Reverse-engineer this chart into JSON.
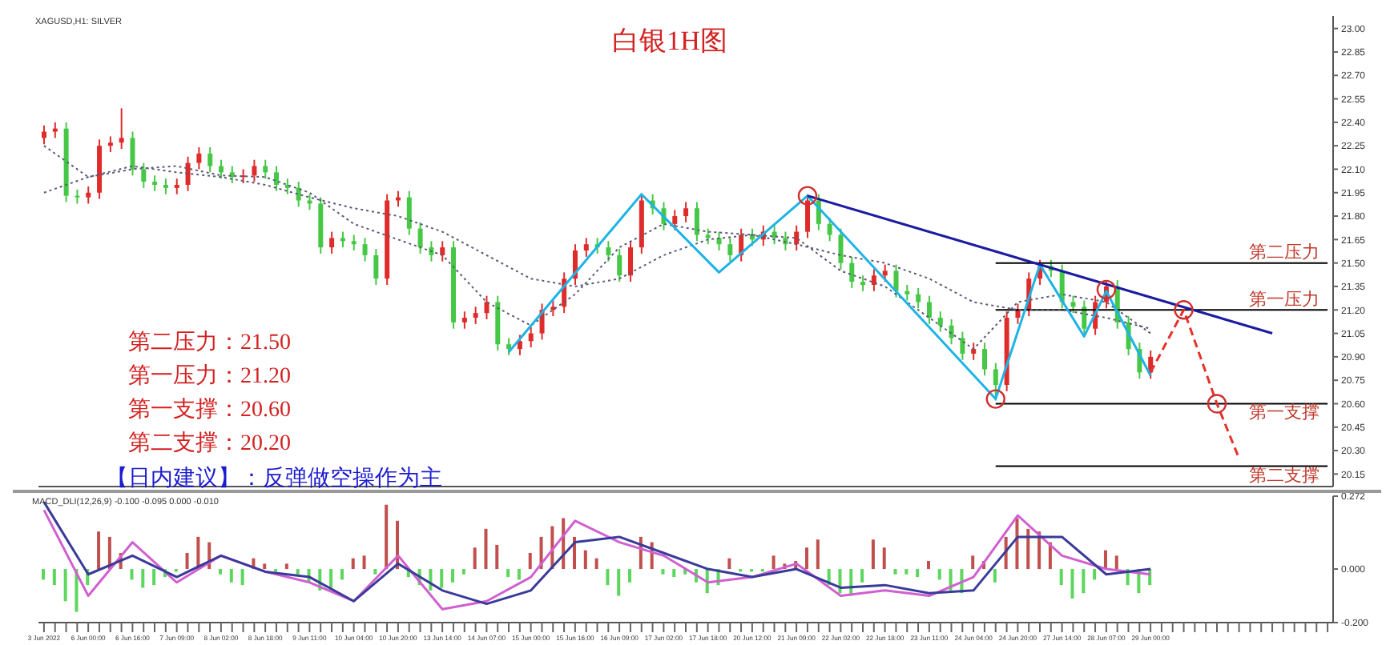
{
  "chart_data": [
    {
      "type": "candlestick",
      "title": "白银1H图",
      "annotations": [
        "XAGUSD,H1: SILVER",
        "第二压力：21.50",
        "第一压力：21.20",
        "第一支撑：20.60",
        "第二支撑：20.20",
        "【日内建议】：反弹做空操作为主"
      ],
      "categories": [
        null,
        null,
        null,
        null,
        null,
        null,
        null,
        null,
        null,
        null,
        null,
        null,
        null,
        null,
        null,
        null,
        null,
        null,
        null,
        null,
        null,
        null,
        null,
        null,
        null,
        null,
        null,
        null,
        null,
        null,
        null,
        null,
        null,
        null,
        null,
        null,
        null,
        null,
        null,
        null,
        null,
        null,
        null,
        null,
        null,
        null,
        null,
        null,
        null,
        null,
        null,
        null,
        null,
        null,
        null,
        null,
        null,
        null,
        null,
        null,
        null,
        null,
        null,
        null,
        null,
        null,
        null,
        null,
        null,
        null,
        null,
        null,
        null,
        null,
        null,
        null,
        null,
        null,
        null,
        null,
        null,
        null,
        null,
        null,
        null,
        null,
        null,
        null,
        null,
        null,
        null,
        null,
        null,
        null,
        null,
        null,
        null,
        null,
        null,
        null,
        null,
        null,
        null,
        null,
        null,
        null,
        null,
        null,
        null,
        null,
        null,
        null,
        null,
        null,
        null,
        null,
        null
      ],
      "ohlc": [
        [
          22.3,
          22.38,
          22.26,
          22.34
        ],
        [
          22.34,
          22.4,
          22.3,
          22.36
        ],
        [
          22.36,
          22.4,
          21.89,
          21.93
        ],
        [
          21.93,
          21.97,
          21.88,
          21.92
        ],
        [
          21.92,
          21.99,
          21.88,
          21.95
        ],
        [
          21.95,
          22.29,
          21.91,
          22.25
        ],
        [
          22.25,
          22.31,
          22.21,
          22.27
        ],
        [
          22.27,
          22.49,
          22.23,
          22.3
        ],
        [
          22.3,
          22.34,
          22.06,
          22.1
        ],
        [
          22.1,
          22.14,
          21.98,
          22.02
        ],
        [
          22.02,
          22.06,
          21.96,
          22.0
        ],
        [
          22.0,
          22.04,
          21.94,
          21.98
        ],
        [
          21.98,
          22.04,
          21.94,
          22.0
        ],
        [
          22.0,
          22.18,
          21.96,
          22.14
        ],
        [
          22.14,
          22.24,
          22.1,
          22.2
        ],
        [
          22.2,
          22.24,
          22.08,
          22.12
        ],
        [
          22.12,
          22.16,
          22.04,
          22.08
        ],
        [
          22.08,
          22.12,
          22.01,
          22.05
        ],
        [
          22.05,
          22.1,
          22.01,
          22.06
        ],
        [
          22.06,
          22.16,
          22.02,
          22.12
        ],
        [
          22.12,
          22.16,
          22.04,
          22.08
        ],
        [
          22.08,
          22.12,
          21.96,
          22.0
        ],
        [
          22.0,
          22.04,
          21.94,
          21.98
        ],
        [
          21.98,
          22.02,
          21.86,
          21.9
        ],
        [
          21.9,
          21.94,
          21.84,
          21.88
        ],
        [
          21.88,
          21.92,
          21.56,
          21.6
        ],
        [
          21.6,
          21.7,
          21.56,
          21.66
        ],
        [
          21.66,
          21.7,
          21.6,
          21.64
        ],
        [
          21.64,
          21.68,
          21.58,
          21.62
        ],
        [
          21.62,
          21.66,
          21.51,
          21.55
        ],
        [
          21.55,
          21.59,
          21.36,
          21.4
        ],
        [
          21.4,
          21.94,
          21.36,
          21.9
        ],
        [
          21.9,
          21.96,
          21.86,
          21.92
        ],
        [
          21.92,
          21.96,
          21.68,
          21.72
        ],
        [
          21.72,
          21.76,
          21.56,
          21.6
        ],
        [
          21.6,
          21.64,
          21.51,
          21.55
        ],
        [
          21.55,
          21.64,
          21.51,
          21.6
        ],
        [
          21.6,
          21.64,
          21.08,
          21.12
        ],
        [
          21.12,
          21.19,
          21.08,
          21.15
        ],
        [
          21.15,
          21.22,
          21.11,
          21.18
        ],
        [
          21.18,
          21.29,
          21.14,
          21.25
        ],
        [
          21.25,
          21.29,
          20.94,
          20.98
        ],
        [
          20.98,
          21.02,
          20.91,
          20.95
        ],
        [
          20.95,
          21.04,
          20.91,
          21.0
        ],
        [
          21.0,
          21.09,
          20.96,
          21.05
        ],
        [
          21.05,
          21.24,
          21.01,
          21.2
        ],
        [
          21.2,
          21.26,
          21.16,
          21.22
        ],
        [
          21.22,
          21.44,
          21.18,
          21.4
        ],
        [
          21.4,
          21.62,
          21.36,
          21.58
        ],
        [
          21.58,
          21.66,
          21.54,
          21.62
        ],
        [
          21.62,
          21.66,
          21.56,
          21.6
        ],
        [
          21.6,
          21.64,
          21.51,
          21.55
        ],
        [
          21.55,
          21.59,
          21.38,
          21.42
        ],
        [
          21.42,
          21.64,
          21.38,
          21.6
        ],
        [
          21.6,
          21.94,
          21.56,
          21.9
        ],
        [
          21.9,
          21.94,
          21.81,
          21.85
        ],
        [
          21.85,
          21.89,
          21.71,
          21.75
        ],
        [
          21.75,
          21.84,
          21.71,
          21.8
        ],
        [
          21.8,
          21.89,
          21.76,
          21.85
        ],
        [
          21.85,
          21.89,
          21.64,
          21.68
        ],
        [
          21.68,
          21.72,
          21.62,
          21.66
        ],
        [
          21.66,
          21.7,
          21.58,
          21.62
        ],
        [
          21.62,
          21.66,
          21.51,
          21.55
        ],
        [
          21.55,
          21.72,
          21.51,
          21.68
        ],
        [
          21.68,
          21.72,
          21.61,
          21.65
        ],
        [
          21.65,
          21.74,
          21.61,
          21.7
        ],
        [
          21.7,
          21.74,
          21.62,
          21.66
        ],
        [
          21.66,
          21.7,
          21.58,
          21.62
        ],
        [
          21.62,
          21.74,
          21.58,
          21.7
        ],
        [
          21.7,
          21.94,
          21.66,
          21.9
        ],
        [
          21.9,
          21.94,
          21.71,
          21.75
        ],
        [
          21.75,
          21.79,
          21.64,
          21.68
        ],
        [
          21.68,
          21.72,
          21.46,
          21.5
        ],
        [
          21.5,
          21.54,
          21.34,
          21.38
        ],
        [
          21.38,
          21.42,
          21.32,
          21.36
        ],
        [
          21.36,
          21.46,
          21.32,
          21.42
        ],
        [
          21.42,
          21.49,
          21.38,
          21.45
        ],
        [
          21.45,
          21.49,
          21.28,
          21.32
        ],
        [
          21.32,
          21.36,
          21.26,
          21.3
        ],
        [
          21.3,
          21.34,
          21.21,
          21.25
        ],
        [
          21.25,
          21.29,
          21.11,
          21.15
        ],
        [
          21.15,
          21.19,
          21.06,
          21.1
        ],
        [
          21.1,
          21.14,
          20.98,
          21.02
        ],
        [
          21.02,
          21.06,
          20.88,
          20.92
        ],
        [
          20.92,
          20.99,
          20.88,
          20.95
        ],
        [
          20.95,
          20.99,
          20.78,
          20.82
        ],
        [
          20.82,
          20.86,
          20.62,
          20.72
        ],
        [
          20.72,
          21.19,
          20.68,
          21.15
        ],
        [
          21.15,
          21.24,
          21.11,
          21.2
        ],
        [
          21.2,
          21.44,
          21.16,
          21.4
        ],
        [
          21.4,
          21.52,
          21.36,
          21.48
        ],
        [
          21.48,
          21.52,
          21.41,
          21.45
        ],
        [
          21.45,
          21.49,
          21.21,
          21.25
        ],
        [
          21.25,
          21.29,
          21.18,
          21.22
        ],
        [
          21.22,
          21.26,
          21.04,
          21.08
        ],
        [
          21.08,
          21.29,
          21.04,
          21.25
        ],
        [
          21.25,
          21.39,
          21.21,
          21.35
        ],
        [
          21.35,
          21.39,
          21.08,
          21.12
        ],
        [
          21.12,
          21.16,
          20.91,
          20.95
        ],
        [
          20.95,
          20.99,
          20.76,
          20.8
        ],
        [
          20.8,
          20.94,
          20.76,
          20.9
        ],
        null,
        null,
        null,
        null,
        null,
        null,
        null,
        null,
        null,
        null,
        null,
        null,
        null,
        null,
        null,
        null
      ],
      "colors": [
        "#e02b2b",
        "#e02b2b",
        "#46c846",
        "#46c846",
        "#e02b2b",
        "#e02b2b",
        "#e02b2b",
        "#e02b2b",
        "#46c846",
        "#46c846",
        "#46c846",
        "#46c846",
        "#e02b2b",
        "#e02b2b",
        "#e02b2b",
        "#46c846",
        "#46c846",
        "#46c846",
        "#e02b2b",
        "#e02b2b",
        "#46c846",
        "#46c846",
        "#46c846",
        "#46c846",
        "#46c846",
        "#46c846",
        "#e02b2b",
        "#46c846",
        "#46c846",
        "#46c846",
        "#46c846",
        "#e02b2b",
        "#e02b2b",
        "#46c846",
        "#46c846",
        "#46c846",
        "#e02b2b",
        "#46c846",
        "#e02b2b",
        "#e02b2b",
        "#e02b2b",
        "#46c846",
        "#46c846",
        "#e02b2b",
        "#e02b2b",
        "#e02b2b",
        "#e02b2b",
        "#e02b2b",
        "#e02b2b",
        "#e02b2b",
        "#46c846",
        "#46c846",
        "#46c846",
        "#e02b2b",
        "#e02b2b",
        "#46c846",
        "#46c846",
        "#e02b2b",
        "#e02b2b",
        "#46c846",
        "#46c846",
        "#46c846",
        "#46c846",
        "#e02b2b",
        "#46c846",
        "#e02b2b",
        "#46c846",
        "#46c846",
        "#e02b2b",
        "#e02b2b",
        "#46c846",
        "#46c846",
        "#46c846",
        "#46c846",
        "#46c846",
        "#e02b2b",
        "#e02b2b",
        "#46c846",
        "#46c846",
        "#46c846",
        "#46c846",
        "#46c846",
        "#46c846",
        "#46c846",
        "#e02b2b",
        "#46c846",
        "#46c846",
        "#e02b2b",
        "#e02b2b",
        "#e02b2b",
        "#e02b2b",
        "#46c846",
        "#46c846",
        "#46c846",
        "#46c846",
        "#e02b2b",
        "#e02b2b",
        "#46c846",
        "#46c846",
        "#46c846",
        "#e02b2b",
        null,
        null,
        null,
        null,
        null,
        null,
        null,
        null,
        null,
        null,
        null,
        null,
        null,
        null,
        null,
        null
      ],
      "series": [
        {
          "type": "line",
          "color": "#5a5a78",
          "line_style": "dotted",
          "values": [
            22.25,
            null,
            null,
            null,
            22.05,
            null,
            null,
            null,
            22.1,
            null,
            null,
            null,
            22.12,
            null,
            null,
            null,
            22.06,
            null,
            null,
            null,
            22.05,
            null,
            null,
            null,
            21.95,
            null,
            null,
            null,
            21.75,
            null,
            null,
            null,
            21.65,
            null,
            null,
            null,
            21.55,
            null,
            null,
            null,
            21.25,
            null,
            null,
            null,
            21.1,
            null,
            null,
            null,
            21.3,
            null,
            null,
            null,
            21.6,
            null,
            null,
            null,
            21.75,
            null,
            null,
            null,
            21.7,
            null,
            null,
            null,
            21.68,
            null,
            null,
            null,
            21.66,
            null,
            null,
            null,
            21.45,
            null,
            null,
            null,
            21.35,
            null,
            null,
            null,
            21.15,
            null,
            null,
            null,
            20.95,
            null,
            null,
            null,
            21.25,
            null,
            null,
            null,
            21.3,
            null,
            null,
            null,
            21.25,
            null,
            null,
            null,
            21.05,
            null,
            null,
            null,
            null,
            null,
            null,
            null,
            null,
            null,
            null,
            null,
            null,
            null,
            null,
            null,
            null
          ]
        },
        {
          "type": "line",
          "color": "#5a5a78",
          "line_style": "dotted",
          "values": [
            21.95,
            null,
            null,
            null,
            22.05,
            null,
            null,
            null,
            22.12,
            null,
            null,
            null,
            22.08,
            null,
            null,
            null,
            22.05,
            null,
            null,
            null,
            22.0,
            null,
            null,
            null,
            21.92,
            null,
            null,
            null,
            21.85,
            null,
            null,
            null,
            21.8,
            null,
            null,
            null,
            21.7,
            null,
            null,
            null,
            21.55,
            null,
            null,
            null,
            21.4,
            null,
            null,
            null,
            21.35,
            null,
            null,
            null,
            21.4,
            null,
            null,
            null,
            21.55,
            null,
            null,
            null,
            21.65,
            null,
            null,
            null,
            21.68,
            null,
            null,
            null,
            21.62,
            null,
            null,
            null,
            21.55,
            null,
            null,
            null,
            21.5,
            null,
            null,
            null,
            21.4,
            null,
            null,
            null,
            21.25,
            null,
            null,
            null,
            21.2,
            null,
            null,
            null,
            21.2,
            null,
            null,
            null,
            21.15,
            null,
            null,
            null,
            21.08,
            null,
            null,
            null,
            null,
            null,
            null,
            null,
            null,
            null,
            null,
            null,
            null,
            null,
            null,
            null,
            null
          ]
        },
        {
          "type": "line",
          "color": "#1eb4e6",
          "line_style": "solid",
          "values": [
            null,
            null,
            null,
            null,
            null,
            null,
            null,
            null,
            null,
            null,
            null,
            null,
            null,
            null,
            null,
            null,
            null,
            null,
            null,
            null,
            null,
            null,
            null,
            null,
            null,
            null,
            null,
            null,
            null,
            null,
            null,
            null,
            null,
            null,
            null,
            null,
            null,
            null,
            null,
            null,
            null,
            null,
            20.93,
            null,
            null,
            null,
            null,
            null,
            null,
            null,
            null,
            null,
            null,
            null,
            21.94,
            null,
            null,
            null,
            null,
            null,
            null,
            21.44,
            null,
            null,
            null,
            null,
            null,
            null,
            null,
            21.93,
            null,
            null,
            null,
            null,
            null,
            null,
            null,
            null,
            null,
            null,
            null,
            null,
            null,
            null,
            null,
            null,
            20.63,
            null,
            null,
            null,
            21.49,
            null,
            null,
            null,
            21.03,
            null,
            21.32,
            null,
            null,
            null,
            20.78,
            null,
            null,
            null,
            null,
            null,
            null,
            null,
            null,
            null,
            null,
            null,
            null,
            null,
            null,
            null,
            null
          ]
        },
        {
          "type": "line",
          "color": "#1c1ca0",
          "line_style": "solid",
          "values": [
            null,
            null,
            null,
            null,
            null,
            null,
            null,
            null,
            null,
            null,
            null,
            null,
            null,
            null,
            null,
            null,
            null,
            null,
            null,
            null,
            null,
            null,
            null,
            null,
            null,
            null,
            null,
            null,
            null,
            null,
            null,
            null,
            null,
            null,
            null,
            null,
            null,
            null,
            null,
            null,
            null,
            null,
            null,
            null,
            null,
            null,
            null,
            null,
            null,
            null,
            null,
            null,
            null,
            null,
            null,
            null,
            null,
            null,
            null,
            null,
            null,
            null,
            null,
            null,
            null,
            null,
            null,
            null,
            null,
            21.93,
            null,
            null,
            null,
            null,
            null,
            null,
            null,
            null,
            null,
            null,
            null,
            null,
            null,
            null,
            null,
            null,
            null,
            null,
            null,
            null,
            null,
            null,
            null,
            null,
            null,
            null,
            null,
            null,
            null,
            null,
            null,
            null,
            null,
            null,
            null,
            null,
            null,
            null,
            null,
            null,
            null,
            21.05,
            null,
            null,
            null,
            null,
            null
          ]
        },
        {
          "type": "line",
          "color": "#e8302a",
          "line_style": "dashed",
          "values": [
            null,
            null,
            null,
            null,
            null,
            null,
            null,
            null,
            null,
            null,
            null,
            null,
            null,
            null,
            null,
            null,
            null,
            null,
            null,
            null,
            null,
            null,
            null,
            null,
            null,
            null,
            null,
            null,
            null,
            null,
            null,
            null,
            null,
            null,
            null,
            null,
            null,
            null,
            null,
            null,
            null,
            null,
            null,
            null,
            null,
            null,
            null,
            null,
            null,
            null,
            null,
            null,
            null,
            null,
            null,
            null,
            null,
            null,
            null,
            null,
            null,
            null,
            null,
            null,
            null,
            null,
            null,
            null,
            null,
            null,
            null,
            null,
            null,
            null,
            null,
            null,
            null,
            null,
            null,
            null,
            null,
            null,
            null,
            null,
            null,
            null,
            null,
            null,
            null,
            null,
            null,
            null,
            null,
            null,
            null,
            null,
            null,
            null,
            null,
            null,
            20.8,
            null,
            null,
            21.2,
            null,
            null,
            20.6,
            null,
            20.25,
            null,
            null,
            null,
            null,
            null,
            null,
            null,
            null
          ]
        },
        {
          "type": "scatter",
          "color": "#d03030",
          "marker": "circle",
          "values": [
            null,
            null,
            null,
            null,
            null,
            null,
            null,
            null,
            null,
            null,
            null,
            null,
            null,
            null,
            null,
            null,
            null,
            null,
            null,
            null,
            null,
            null,
            null,
            null,
            null,
            null,
            null,
            null,
            null,
            null,
            null,
            null,
            null,
            null,
            null,
            null,
            null,
            null,
            null,
            null,
            null,
            null,
            null,
            null,
            null,
            null,
            null,
            null,
            null,
            null,
            null,
            null,
            null,
            null,
            null,
            null,
            null,
            null,
            null,
            null,
            null,
            null,
            null,
            null,
            null,
            null,
            null,
            null,
            null,
            21.93,
            null,
            null,
            null,
            null,
            null,
            null,
            null,
            null,
            null,
            null,
            null,
            null,
            null,
            null,
            null,
            null,
            20.63,
            null,
            null,
            null,
            null,
            null,
            null,
            null,
            null,
            null,
            21.33,
            null,
            null,
            null,
            null,
            null,
            null,
            21.2,
            null,
            null,
            20.6,
            null,
            null,
            null,
            null,
            null,
            null,
            null,
            null,
            null,
            null
          ]
        }
      ],
      "ref_lines": [
        {
          "axis": "y",
          "value": 21.5,
          "label": "第二压力",
          "color": "#000000"
        },
        {
          "axis": "y",
          "value": 21.2,
          "label": "第一压力",
          "color": "#000000"
        },
        {
          "axis": "y",
          "value": 20.6,
          "label": "第一支撑",
          "color": "#000000"
        },
        {
          "axis": "y",
          "value": 20.2,
          "label": "第二支撑",
          "color": "#000000"
        }
      ],
      "ylim": [
        20.07,
        23.08
      ],
      "yticks": [
        20.15,
        {
          "value": 20.3,
          "label": "20.30"
        },
        20.45,
        {
          "value": 20.6,
          "label": "20.60"
        },
        20.75,
        {
          "value": 20.9,
          "label": "20.90"
        },
        21.05,
        {
          "value": 21.2,
          "label": "21.20"
        },
        21.35,
        {
          "value": 21.5,
          "label": "21.50"
        },
        21.65,
        {
          "value": 21.8,
          "label": "21.80"
        },
        21.95,
        {
          "value": 22.1,
          "label": "22.10"
        },
        22.25,
        {
          "value": 22.4,
          "label": "22.40"
        },
        22.55,
        {
          "value": 22.7,
          "label": "22.70"
        },
        22.85,
        {
          "value": 23,
          "label": "23.00"
        }
      ],
      "tick_labels": "y",
      "grid": false,
      "legend": false
    },
    {
      "type": "bar",
      "title": "MACD_DLI(12,26,9) -0.100 -0.095 0.000 -0.010",
      "categories": [
        "3 Jun 2022",
        null,
        null,
        null,
        "6 Jun 00:00",
        null,
        null,
        null,
        "6 Jun 16:00",
        null,
        null,
        null,
        "7 Jun 09:00",
        null,
        null,
        null,
        "8 Jun 02:00",
        null,
        null,
        null,
        "8 Jun 18:00",
        null,
        null,
        null,
        "9 Jun 11:00",
        null,
        null,
        null,
        "10 Jun 04:00",
        null,
        null,
        null,
        "10 Jun 20:00",
        null,
        null,
        null,
        "13 Jun 14:00",
        null,
        null,
        null,
        "14 Jun 07:00",
        null,
        null,
        null,
        "15 Jun 00:00",
        null,
        null,
        null,
        "15 Jun 16:00",
        null,
        null,
        null,
        "16 Jun 09:00",
        null,
        null,
        null,
        "17 Jun 02:00",
        null,
        null,
        null,
        "17 Jun 18:00",
        null,
        null,
        null,
        "20 Jun 12:00",
        null,
        null,
        null,
        "21 Jun 09:00",
        null,
        null,
        null,
        "22 Jun 02:00",
        null,
        null,
        null,
        "22 Jun 18:00",
        null,
        null,
        null,
        "23 Jun 11:00",
        null,
        null,
        null,
        "24 Jun 04:00",
        null,
        null,
        null,
        "24 Jun 20:00",
        null,
        null,
        null,
        "27 Jun 14:00",
        null,
        null,
        null,
        "28 Jun 07:00",
        null,
        null,
        null,
        "29 Jun 00:00",
        null,
        null,
        null,
        null,
        null,
        null,
        null,
        null,
        null,
        null,
        null,
        null,
        null,
        null,
        null,
        null
      ],
      "values": [
        -0.04,
        -0.06,
        -0.12,
        -0.16,
        -0.06,
        0.14,
        0.12,
        0.06,
        -0.04,
        -0.07,
        -0.06,
        -0.03,
        -0.01,
        0.06,
        0.12,
        0.1,
        -0.02,
        -0.05,
        -0.06,
        0.04,
        0.02,
        -0.01,
        0.02,
        -0.02,
        -0.05,
        -0.08,
        -0.07,
        -0.04,
        0.04,
        0.05,
        -0.02,
        0.24,
        0.18,
        -0.03,
        -0.06,
        -0.08,
        -0.07,
        -0.05,
        -0.02,
        0.08,
        0.15,
        0.09,
        -0.03,
        -0.04,
        0.06,
        0.12,
        0.16,
        0.19,
        0.12,
        0.07,
        0.04,
        -0.06,
        -0.1,
        -0.05,
        0.12,
        0.1,
        -0.02,
        -0.03,
        -0.02,
        -0.05,
        -0.09,
        -0.06,
        0.04,
        -0.01,
        -0.01,
        -0.01,
        0.05,
        0.02,
        0.03,
        0.08,
        0.11,
        -0.06,
        -0.09,
        -0.1,
        -0.05,
        0.11,
        0.08,
        -0.02,
        -0.02,
        -0.03,
        0.03,
        -0.04,
        -0.08,
        -0.09,
        0.05,
        0.03,
        -0.05,
        0.12,
        0.19,
        0.15,
        0.14,
        0.1,
        -0.06,
        -0.11,
        -0.09,
        -0.04,
        0.07,
        0.05,
        -0.06,
        -0.09,
        -0.06,
        null,
        null,
        null,
        null,
        null,
        null,
        null,
        null,
        null,
        null,
        null,
        null,
        null,
        null,
        null,
        null
      ],
      "colors": [
        "#5cd65c",
        "#5cd65c",
        "#5cd65c",
        "#5cd65c",
        "#5cd65c",
        "#c0504d",
        "#c0504d",
        "#c0504d",
        "#5cd65c",
        "#5cd65c",
        "#5cd65c",
        "#5cd65c",
        "#5cd65c",
        "#c0504d",
        "#c0504d",
        "#c0504d",
        "#5cd65c",
        "#5cd65c",
        "#5cd65c",
        "#c0504d",
        "#c0504d",
        "#5cd65c",
        "#c0504d",
        "#5cd65c",
        "#5cd65c",
        "#5cd65c",
        "#5cd65c",
        "#5cd65c",
        "#c0504d",
        "#c0504d",
        "#5cd65c",
        "#c0504d",
        "#c0504d",
        "#5cd65c",
        "#5cd65c",
        "#5cd65c",
        "#5cd65c",
        "#5cd65c",
        "#5cd65c",
        "#c0504d",
        "#c0504d",
        "#c0504d",
        "#5cd65c",
        "#5cd65c",
        "#c0504d",
        "#c0504d",
        "#c0504d",
        "#c0504d",
        "#c0504d",
        "#c0504d",
        "#c0504d",
        "#5cd65c",
        "#5cd65c",
        "#5cd65c",
        "#c0504d",
        "#c0504d",
        "#5cd65c",
        "#5cd65c",
        "#5cd65c",
        "#5cd65c",
        "#5cd65c",
        "#5cd65c",
        "#c0504d",
        "#5cd65c",
        "#5cd65c",
        "#5cd65c",
        "#c0504d",
        "#c0504d",
        "#c0504d",
        "#c0504d",
        "#c0504d",
        "#5cd65c",
        "#5cd65c",
        "#5cd65c",
        "#5cd65c",
        "#c0504d",
        "#c0504d",
        "#5cd65c",
        "#5cd65c",
        "#5cd65c",
        "#c0504d",
        "#5cd65c",
        "#5cd65c",
        "#5cd65c",
        "#c0504d",
        "#c0504d",
        "#5cd65c",
        "#c0504d",
        "#c0504d",
        "#c0504d",
        "#c0504d",
        "#c0504d",
        "#5cd65c",
        "#5cd65c",
        "#5cd65c",
        "#5cd65c",
        "#c0504d",
        "#c0504d",
        "#5cd65c",
        "#5cd65c",
        "#5cd65c",
        null,
        null,
        null,
        null,
        null,
        null,
        null,
        null,
        null,
        null,
        null,
        null,
        null,
        null,
        null,
        null
      ],
      "series": [
        {
          "type": "line",
          "color": "#d060d0",
          "line_style": "solid",
          "values": [
            0.22,
            null,
            null,
            null,
            -0.1,
            null,
            null,
            null,
            0.1,
            null,
            null,
            null,
            -0.05,
            null,
            null,
            null,
            0.05,
            null,
            null,
            null,
            -0.01,
            null,
            null,
            null,
            -0.05,
            null,
            null,
            null,
            -0.12,
            null,
            null,
            null,
            0.05,
            null,
            null,
            null,
            -0.15,
            null,
            null,
            null,
            -0.12,
            null,
            null,
            null,
            -0.03,
            null,
            null,
            null,
            0.18,
            null,
            null,
            null,
            0.1,
            null,
            null,
            null,
            0.05,
            null,
            null,
            null,
            -0.05,
            null,
            null,
            null,
            -0.03,
            null,
            null,
            null,
            0.02,
            null,
            null,
            null,
            -0.1,
            null,
            null,
            null,
            -0.08,
            null,
            null,
            null,
            -0.1,
            null,
            null,
            null,
            -0.03,
            null,
            null,
            null,
            0.2,
            null,
            null,
            null,
            0.05,
            null,
            null,
            null,
            0.0,
            null,
            null,
            null,
            -0.02,
            null,
            null,
            null,
            null,
            null,
            null,
            null,
            null,
            null,
            null,
            null,
            null,
            null,
            null,
            null,
            null
          ]
        },
        {
          "type": "line",
          "color": "#3a3a9a",
          "line_style": "solid",
          "values": [
            0.25,
            null,
            null,
            null,
            -0.02,
            null,
            null,
            null,
            0.05,
            null,
            null,
            null,
            -0.03,
            null,
            null,
            null,
            0.05,
            null,
            null,
            null,
            -0.01,
            null,
            null,
            null,
            -0.03,
            null,
            null,
            null,
            -0.12,
            null,
            null,
            null,
            0.02,
            null,
            null,
            null,
            -0.08,
            null,
            null,
            null,
            -0.13,
            null,
            null,
            null,
            -0.08,
            null,
            null,
            null,
            0.1,
            null,
            null,
            null,
            0.12,
            null,
            null,
            null,
            0.06,
            null,
            null,
            null,
            0.0,
            null,
            null,
            null,
            -0.03,
            null,
            null,
            null,
            0.0,
            null,
            null,
            null,
            -0.07,
            null,
            null,
            null,
            -0.06,
            null,
            null,
            null,
            -0.09,
            null,
            null,
            null,
            -0.08,
            null,
            null,
            null,
            0.12,
            null,
            null,
            null,
            0.12,
            null,
            null,
            null,
            -0.02,
            null,
            null,
            null,
            0.0,
            null,
            null,
            null,
            null,
            null,
            null,
            null,
            null,
            null,
            null,
            null,
            null,
            null,
            null,
            null,
            null
          ]
        }
      ],
      "ylim": [
        -0.2,
        0.272
      ],
      "yticks": [
        {
          "value": -0.2,
          "label": "-0.200"
        },
        {
          "value": 0,
          "label": "0.000"
        },
        0.272
      ],
      "grid": false,
      "legend": false
    }
  ]
}
